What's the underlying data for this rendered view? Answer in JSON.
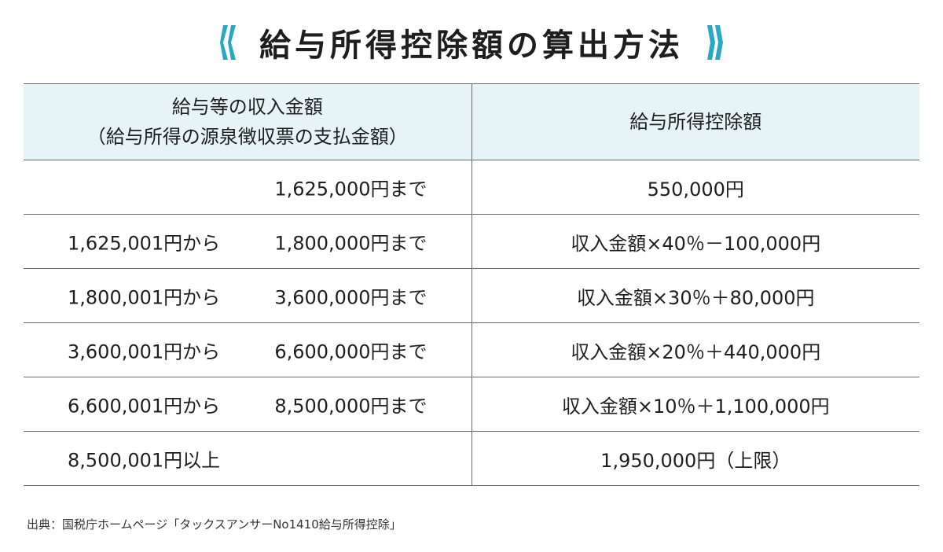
{
  "title": "給与所得控除額の算出方法",
  "accent_color": "#2aa7c4",
  "header_bg": "#e7f4f7",
  "table": {
    "headers": {
      "income_line1": "給与等の収入金額",
      "income_line2": "（給与所得の源泉徴収票の支払金額）",
      "deduction": "給与所得控除額"
    },
    "rows": [
      {
        "from": "",
        "to": "1,625,000円まで",
        "deduction": "550,000円"
      },
      {
        "from": "1,625,001円から",
        "to": "1,800,000円まで",
        "deduction": "収入金額×40％－100,000円"
      },
      {
        "from": "1,800,001円から",
        "to": "3,600,000円まで",
        "deduction": "収入金額×30％＋80,000円"
      },
      {
        "from": "3,600,001円から",
        "to": "6,600,000円まで",
        "deduction": "収入金額×20％＋440,000円"
      },
      {
        "from": "6,600,001円から",
        "to": "8,500,000円まで",
        "deduction": "収入金額×10％＋1,100,000円"
      },
      {
        "from": "8,500,001円以上",
        "to": "",
        "deduction": "1,950,000円（上限）"
      }
    ]
  },
  "source": "出典：国税庁ホームページ「タックスアンサーNo1410給与所得控除」"
}
